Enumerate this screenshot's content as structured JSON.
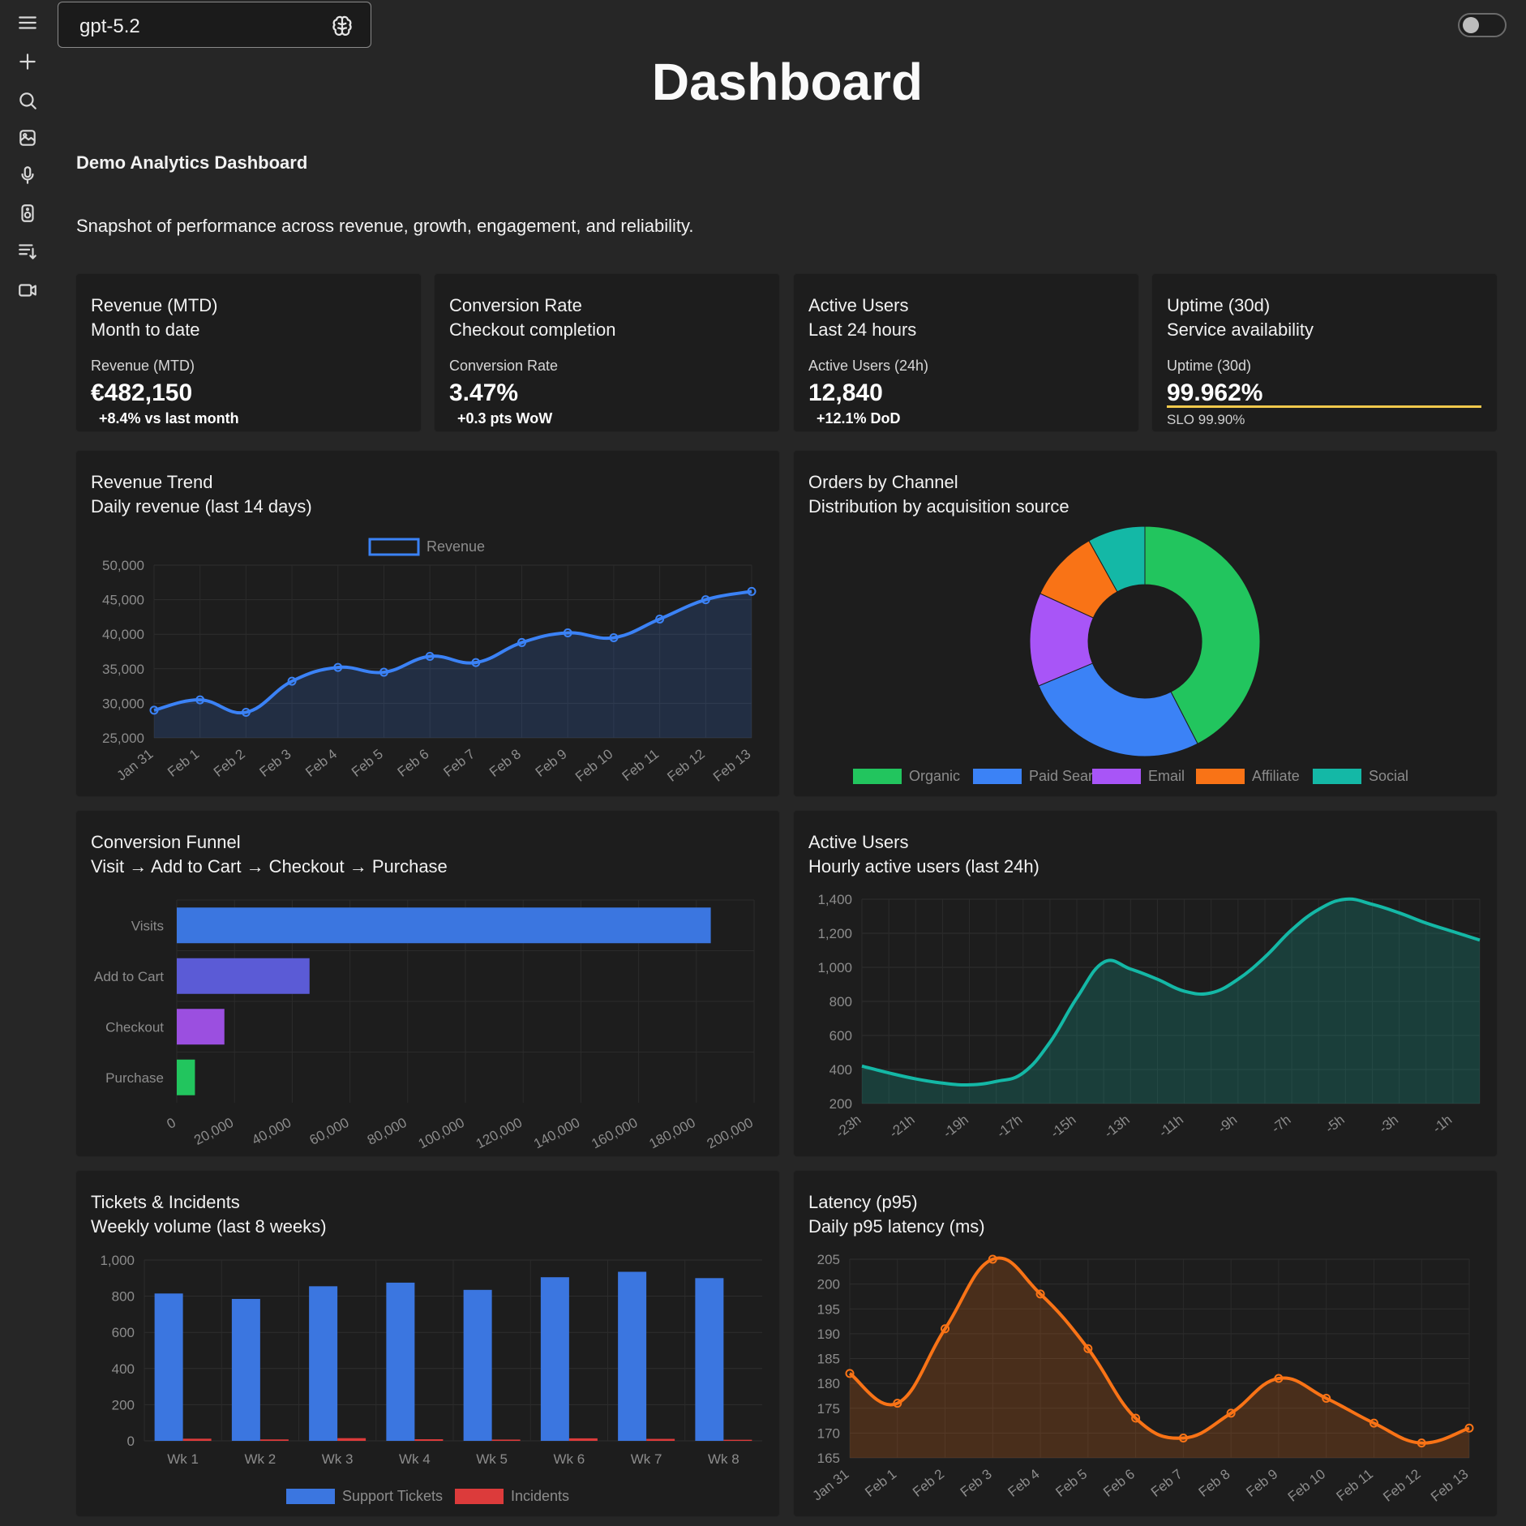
{
  "model_selector": {
    "name": "gpt-5.2"
  },
  "page": {
    "title": "Dashboard",
    "subtitle": "Demo Analytics Dashboard",
    "description": "Snapshot of performance across revenue, growth, engagement, and reliability."
  },
  "sidebar": {
    "icons": [
      "menu-icon",
      "plus-icon",
      "search-icon",
      "image-icon",
      "microphone-icon",
      "speaker-icon",
      "playlist-icon",
      "video-icon"
    ]
  },
  "kpis": [
    {
      "title": "Revenue (MTD)",
      "subtitle": "Month to date",
      "label": "Revenue (MTD)",
      "value": "€482,150",
      "delta": "+8.4% vs last month"
    },
    {
      "title": "Conversion Rate",
      "subtitle": "Checkout completion",
      "label": "Conversion Rate",
      "value": "3.47%",
      "delta": "+0.3 pts WoW"
    },
    {
      "title": "Active Users",
      "subtitle": "Last 24 hours",
      "label": "Active Users (24h)",
      "value": "12,840",
      "delta": "+12.1% DoD"
    },
    {
      "title": "Uptime (30d)",
      "subtitle": "Service availability",
      "label": "Uptime (30d)",
      "value": "99.962%",
      "note": "SLO 99.90%",
      "bar_fraction": 1.0,
      "bar_color": "#f2c94c"
    }
  ],
  "cards": {
    "revenue": {
      "title": "Revenue Trend",
      "subtitle": "Daily revenue (last 14 days)"
    },
    "channels": {
      "title": "Orders by Channel",
      "subtitle": "Distribution by acquisition source"
    },
    "funnel": {
      "title": "Conversion Funnel",
      "subtitle": "Visit → Add to Cart → Checkout → Purchase"
    },
    "active": {
      "title": "Active Users",
      "subtitle": "Hourly active users (last 24h)"
    },
    "tickets": {
      "title": "Tickets & Incidents",
      "subtitle": "Weekly volume (last 8 weeks)"
    },
    "latency": {
      "title": "Latency (p95)",
      "subtitle": "Daily p95 latency (ms)"
    }
  },
  "chart_data": [
    {
      "id": "revenue",
      "type": "line",
      "categories": [
        "Jan 31",
        "Feb 1",
        "Feb 2",
        "Feb 3",
        "Feb 4",
        "Feb 5",
        "Feb 6",
        "Feb 7",
        "Feb 8",
        "Feb 9",
        "Feb 10",
        "Feb 11",
        "Feb 12",
        "Feb 13"
      ],
      "series": [
        {
          "name": "Revenue",
          "color": "#3b82f6",
          "values": [
            29000,
            30500,
            28700,
            33200,
            35200,
            34500,
            36800,
            35900,
            38800,
            40200,
            39500,
            42200,
            45000,
            46200
          ]
        }
      ],
      "ylim": [
        25000,
        50000
      ],
      "yticks": [
        "25,000",
        "30,000",
        "35,000",
        "40,000",
        "45,000",
        "50,000"
      ],
      "legend": "top",
      "grid": true,
      "fill": true
    },
    {
      "id": "channels",
      "type": "pie",
      "donut": true,
      "labels": [
        "Organic",
        "Paid Search",
        "Email",
        "Affiliate",
        "Social"
      ],
      "values": [
        42,
        26,
        13,
        10,
        8
      ],
      "colors": [
        "#22c55e",
        "#3b82f6",
        "#a855f7",
        "#f97316",
        "#14b8a6"
      ],
      "legend": "bottom"
    },
    {
      "id": "funnel",
      "type": "bar",
      "orientation": "horizontal",
      "categories": [
        "Visits",
        "Add to Cart",
        "Checkout",
        "Purchase"
      ],
      "values": [
        185000,
        46000,
        16500,
        6300
      ],
      "colors": [
        "#3b76e0",
        "#5b5bd6",
        "#9b4fe0",
        "#22c55e"
      ],
      "xlim": [
        0,
        200000
      ],
      "xticks": [
        "0",
        "20,000",
        "40,000",
        "60,000",
        "80,000",
        "100,000",
        "120,000",
        "140,000",
        "160,000",
        "180,000",
        "200,000"
      ],
      "grid": true
    },
    {
      "id": "active",
      "type": "area",
      "categories": [
        "-23h",
        "-22h",
        "-21h",
        "-20h",
        "-19h",
        "-18h",
        "-17h",
        "-16h",
        "-15h",
        "-14h",
        "-13h",
        "-12h",
        "-11h",
        "-10h",
        "-9h",
        "-8h",
        "-7h",
        "-6h",
        "-5h",
        "-4h",
        "-3h",
        "-2h",
        "-1h",
        "0h"
      ],
      "tick_labels": [
        "-23h",
        "-21h",
        "-19h",
        "-17h",
        "-15h",
        "-13h",
        "-11h",
        "-9h",
        "-7h",
        "-5h",
        "-3h",
        "-1h"
      ],
      "series": [
        {
          "name": "",
          "color": "#14b8a6",
          "values": [
            420,
            380,
            345,
            320,
            310,
            330,
            380,
            560,
            820,
            1030,
            990,
            930,
            860,
            850,
            930,
            1060,
            1220,
            1340,
            1400,
            1370,
            1320,
            1260,
            1210,
            1160
          ]
        }
      ],
      "ylim": [
        200,
        1400
      ],
      "yticks": [
        "200",
        "400",
        "600",
        "800",
        "1,000",
        "1,200",
        "1,400"
      ],
      "grid": true
    },
    {
      "id": "tickets",
      "type": "bar",
      "categories": [
        "Wk 1",
        "Wk 2",
        "Wk 3",
        "Wk 4",
        "Wk 5",
        "Wk 6",
        "Wk 7",
        "Wk 8"
      ],
      "series": [
        {
          "name": "Support Tickets",
          "color": "#3b76e0",
          "values": [
            815,
            785,
            855,
            875,
            835,
            905,
            935,
            900
          ]
        },
        {
          "name": "Incidents",
          "color": "#dc3b3b",
          "values": [
            12,
            8,
            15,
            9,
            7,
            14,
            11,
            6
          ]
        }
      ],
      "ylim": [
        0,
        1000
      ],
      "yticks": [
        "0",
        "200",
        "400",
        "600",
        "800",
        "1,000"
      ],
      "legend": "bottom",
      "grid": true
    },
    {
      "id": "latency",
      "type": "line",
      "categories": [
        "Jan 31",
        "Feb 1",
        "Feb 2",
        "Feb 3",
        "Feb 4",
        "Feb 5",
        "Feb 6",
        "Feb 7",
        "Feb 8",
        "Feb 9",
        "Feb 10",
        "Feb 11",
        "Feb 12",
        "Feb 13"
      ],
      "series": [
        {
          "name": "",
          "color": "#f97316",
          "values": [
            182,
            176,
            191,
            205,
            198,
            187,
            173,
            169,
            174,
            181,
            177,
            172,
            168,
            171
          ]
        }
      ],
      "ylim": [
        165,
        205
      ],
      "yticks": [
        "165",
        "170",
        "175",
        "180",
        "185",
        "190",
        "195",
        "200",
        "205"
      ],
      "grid": true,
      "fill": true
    }
  ]
}
